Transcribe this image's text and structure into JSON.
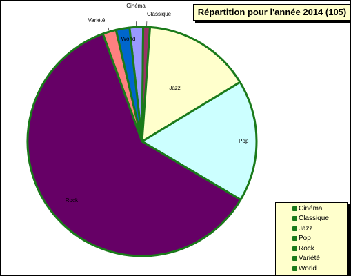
{
  "chart_data": {
    "type": "pie",
    "title": "Répartition pour l'année 2014 (105)",
    "total": 105,
    "slices": [
      {
        "label": "Cinéma",
        "value": 2,
        "color": "#9999ff"
      },
      {
        "label": "Classique",
        "value": 1,
        "color": "#993366"
      },
      {
        "label": "Jazz",
        "value": 16,
        "color": "#ffffcc"
      },
      {
        "label": "Pop",
        "value": 18,
        "color": "#ccffff"
      },
      {
        "label": "Rock",
        "value": 64,
        "color": "#660066"
      },
      {
        "label": "Variété",
        "value": 2,
        "color": "#ff8080"
      },
      {
        "label": "World",
        "value": 2,
        "color": "#0066cc"
      }
    ],
    "legend": [
      "Cinéma",
      "Classique",
      "Jazz",
      "Pop",
      "Rock",
      "Variété",
      "World"
    ],
    "legend_position": "bottom-right",
    "border_color": "#1a7a1a",
    "legend_marker_color": "#1a7a1a"
  }
}
